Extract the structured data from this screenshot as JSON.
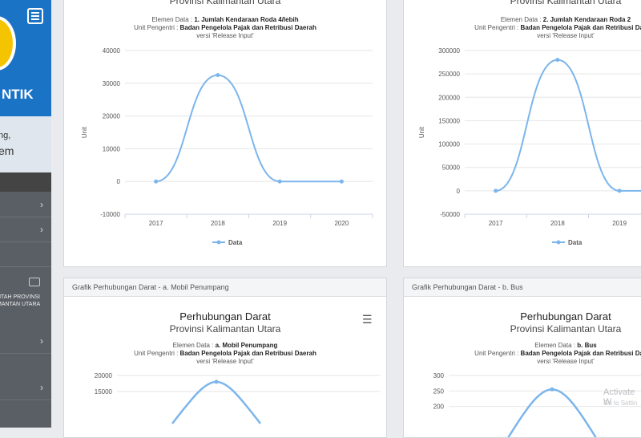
{
  "sidebar": {
    "brand": "NTIK",
    "text_line1": "ng,",
    "text_line2": "em",
    "caption": "NTAH PROVINSI MANTAN UTARA"
  },
  "charts": [
    {
      "panel_header": "",
      "title": "",
      "subtitle": "Provinsi Kalimantan Utara",
      "elemen_label": "Elemen Data :",
      "elemen_value": "1. Jumlah Kendaraan Roda 4/lebih",
      "unit_label": "Unit Pengentri :",
      "unit_value": "Badan Pengelola Pajak dan Retribusi Daerah",
      "version": "versi 'Release Input'",
      "ylabel": "Unit",
      "legend": "Data"
    },
    {
      "panel_header": "",
      "title": "",
      "subtitle": "Provinsi Kalimantan Utara",
      "elemen_label": "Elemen Data :",
      "elemen_value": "2. Jumlah Kendaraan Roda 2",
      "unit_label": "Unit Pengentri :",
      "unit_value": "Badan Pengelola Pajak dan Retribusi Daerah",
      "version": "versi 'Release Input'",
      "ylabel": "Unit",
      "legend": "Data"
    },
    {
      "panel_header": "Grafik Perhubungan Darat - a. Mobil Penumpang",
      "title": "Perhubungan Darat",
      "subtitle": "Provinsi Kalimantan Utara",
      "elemen_label": "Elemen Data :",
      "elemen_value": "a. Mobil Penumpang",
      "unit_label": "Unit Pengentri :",
      "unit_value": "Badan Pengelola Pajak dan Retribusi Daerah",
      "version": "versi 'Release Input'"
    },
    {
      "panel_header": "Grafik Perhubungan Darat - b. Bus",
      "title": "Perhubungan Darat",
      "subtitle": "Provinsi Kalimantan Utara",
      "elemen_label": "Elemen Data :",
      "elemen_value": "b. Bus",
      "unit_label": "Unit Pengentri :",
      "unit_value": "Badan Pengelola Pajak dan Retribusi Daerah",
      "version": "versi 'Release Input'"
    }
  ],
  "watermark": {
    "line1": "Activate W",
    "line2": "Go to Settin"
  },
  "colors": {
    "series": "#7cb5ec",
    "sidebar_blue": "#1a73c5"
  },
  "chart_data": [
    {
      "type": "line",
      "x": [
        "2017",
        "2018",
        "2019",
        "2020"
      ],
      "series": [
        {
          "name": "Data",
          "values": [
            0,
            32500,
            0,
            0
          ]
        }
      ],
      "yticks": [
        "40000",
        "30000",
        "20000",
        "10000",
        "0",
        "-10000"
      ],
      "ylim": [
        -10000,
        40000
      ],
      "ylabel": "Unit",
      "legend": "bottom-center"
    },
    {
      "type": "line",
      "x": [
        "2017",
        "2018",
        "2019"
      ],
      "series": [
        {
          "name": "Data",
          "values": [
            0,
            280000,
            0
          ]
        }
      ],
      "yticks": [
        "300000",
        "250000",
        "200000",
        "150000",
        "100000",
        "50000",
        "0",
        "-50000"
      ],
      "ylim": [
        -50000,
        300000
      ],
      "ylabel": "Unit",
      "legend": "bottom-center"
    },
    {
      "type": "line",
      "series": [
        {
          "name": "",
          "values": [
            18000
          ]
        }
      ],
      "yticks": [
        "20000",
        "15000"
      ],
      "ylim": [
        10000,
        20000
      ]
    },
    {
      "type": "line",
      "series": [
        {
          "name": "",
          "values": [
            255
          ]
        }
      ],
      "yticks": [
        "300",
        "250",
        "200"
      ],
      "ylim": [
        150,
        300
      ]
    }
  ]
}
